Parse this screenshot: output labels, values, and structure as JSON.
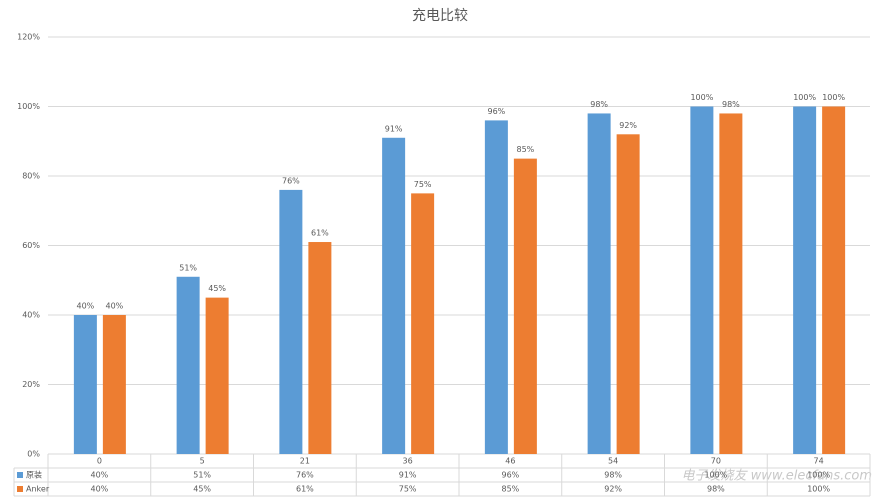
{
  "chart_data": {
    "type": "bar",
    "title": "充电比较",
    "categories": [
      "0",
      "5",
      "21",
      "36",
      "46",
      "54",
      "70",
      "74"
    ],
    "series": [
      {
        "name": "原装",
        "color": "#5b9bd5",
        "values": [
          40,
          51,
          76,
          91,
          96,
          98,
          100,
          100
        ],
        "value_labels": [
          "40%",
          "51%",
          "76%",
          "91%",
          "96%",
          "98%",
          "100%",
          "100%"
        ]
      },
      {
        "name": "Anker",
        "color": "#ed7d31",
        "values": [
          40,
          45,
          61,
          75,
          85,
          92,
          98,
          100
        ],
        "value_labels": [
          "40%",
          "45%",
          "61%",
          "75%",
          "85%",
          "92%",
          "98%",
          "100%"
        ]
      }
    ],
    "ylim": [
      0,
      120
    ],
    "yticks": [
      {
        "value": 0,
        "label": "0%"
      },
      {
        "value": 20,
        "label": "20%"
      },
      {
        "value": 40,
        "label": "40%"
      },
      {
        "value": 60,
        "label": "60%"
      },
      {
        "value": 80,
        "label": "80%"
      },
      {
        "value": 100,
        "label": "100%"
      },
      {
        "value": 120,
        "label": "120%"
      }
    ],
    "grid": true,
    "watermark": "电子发烧友 www.elecfans.com"
  }
}
